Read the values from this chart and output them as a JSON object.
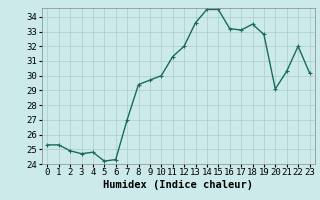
{
  "x": [
    0,
    1,
    2,
    3,
    4,
    5,
    6,
    7,
    8,
    9,
    10,
    11,
    12,
    13,
    14,
    15,
    16,
    17,
    18,
    19,
    20,
    21,
    22,
    23
  ],
  "y": [
    25.3,
    25.3,
    24.9,
    24.7,
    24.8,
    24.2,
    24.3,
    27.0,
    29.4,
    29.7,
    30.0,
    31.3,
    32.0,
    33.6,
    34.5,
    34.5,
    33.2,
    33.1,
    33.5,
    32.8,
    29.1,
    30.3,
    32.0,
    30.2
  ],
  "line_color": "#1a6b5a",
  "marker": "+",
  "marker_size": 3,
  "linewidth": 1.0,
  "background_color": "#cceaea",
  "grid_color": "#aacccc",
  "xlabel": "Humidex (Indice chaleur)",
  "xlim": [
    -0.5,
    23.5
  ],
  "ylim": [
    24,
    34.6
  ],
  "yticks": [
    24,
    25,
    26,
    27,
    28,
    29,
    30,
    31,
    32,
    33,
    34
  ],
  "xlabel_fontsize": 7.5,
  "tick_fontsize": 6.5
}
